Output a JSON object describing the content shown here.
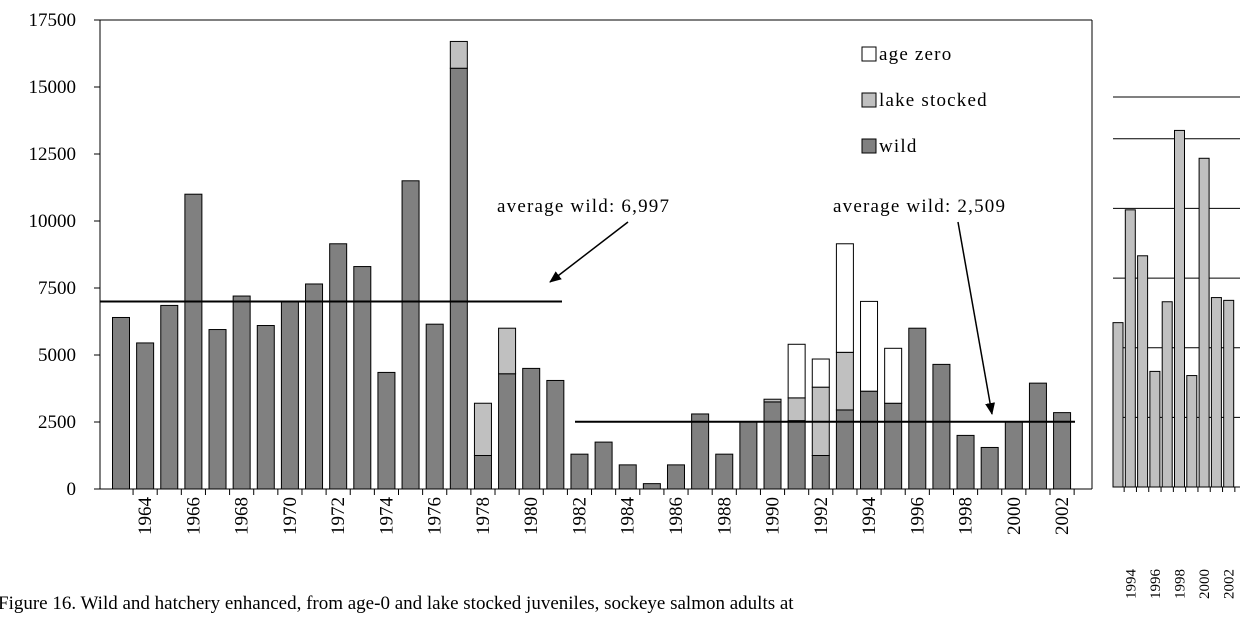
{
  "chart_data": [
    {
      "type": "bar",
      "stacked": true,
      "legend": "upper right",
      "categories": [
        null,
        "1964",
        null,
        "1966",
        null,
        "1968",
        null,
        "1970",
        null,
        "1972",
        null,
        "1974",
        null,
        "1976",
        null,
        "1978",
        null,
        "1980",
        null,
        "1982",
        null,
        "1984",
        null,
        "1986",
        null,
        "1988",
        null,
        "1990",
        null,
        "1992",
        null,
        "1994",
        null,
        "1996",
        null,
        "1998",
        null,
        "2000",
        null,
        "2002"
      ],
      "series": [
        {
          "name": "wild",
          "color": "#808080",
          "values": [
            6400,
            5450,
            6850,
            11000,
            5950,
            7200,
            6100,
            7000,
            7650,
            9150,
            8300,
            4350,
            11500,
            6150,
            15700,
            1250,
            4300,
            4500,
            4050,
            1300,
            1750,
            900,
            200,
            900,
            2800,
            1300,
            2500,
            3250,
            2550,
            1250,
            2950,
            3650,
            3200,
            6000,
            4650,
            2000,
            1550,
            2500,
            3950,
            2850
          ]
        },
        {
          "name": "lake stocked",
          "color": "#c0c0c0",
          "values": [
            0,
            0,
            0,
            0,
            0,
            0,
            0,
            0,
            0,
            0,
            0,
            0,
            0,
            0,
            1000,
            1950,
            1700,
            0,
            0,
            0,
            0,
            0,
            0,
            0,
            0,
            0,
            0,
            100,
            850,
            2550,
            2150,
            0,
            0,
            0,
            0,
            0,
            0,
            0,
            0,
            0
          ]
        },
        {
          "name": "age zero",
          "color": "#ffffff",
          "values": [
            0,
            0,
            0,
            0,
            0,
            0,
            0,
            0,
            0,
            0,
            0,
            0,
            0,
            0,
            0,
            0,
            0,
            0,
            0,
            0,
            0,
            0,
            0,
            0,
            0,
            0,
            0,
            0,
            2000,
            1050,
            4050,
            3350,
            2050,
            0,
            0,
            0,
            0,
            0,
            0,
            0
          ]
        }
      ],
      "ylim": [
        0,
        17500
      ],
      "yticks": [
        0,
        2500,
        5000,
        7500,
        10000,
        12500,
        15000,
        17500
      ],
      "reference_lines": [
        {
          "value": 6997,
          "label": "average wild: 6,997"
        },
        {
          "value": 2509,
          "label": "average wild: 2,509"
        }
      ]
    },
    {
      "type": "bar",
      "color": "#c0c0c0",
      "grid": true,
      "categories": [
        null,
        "1994",
        null,
        "1996",
        null,
        "1998",
        null,
        "2000",
        null,
        "2002"
      ],
      "values": [
        5900,
        9950,
        8300,
        4150,
        6650,
        12800,
        4000,
        11800,
        6800,
        6700
      ],
      "ylim": [
        0,
        14000
      ],
      "yticks": [
        0,
        2500,
        5000,
        7500,
        10000,
        12500
      ]
    }
  ],
  "caption": "Figure 16.  Wild and hatchery enhanced, from age-0 and lake stocked juveniles, sockeye salmon adults at"
}
